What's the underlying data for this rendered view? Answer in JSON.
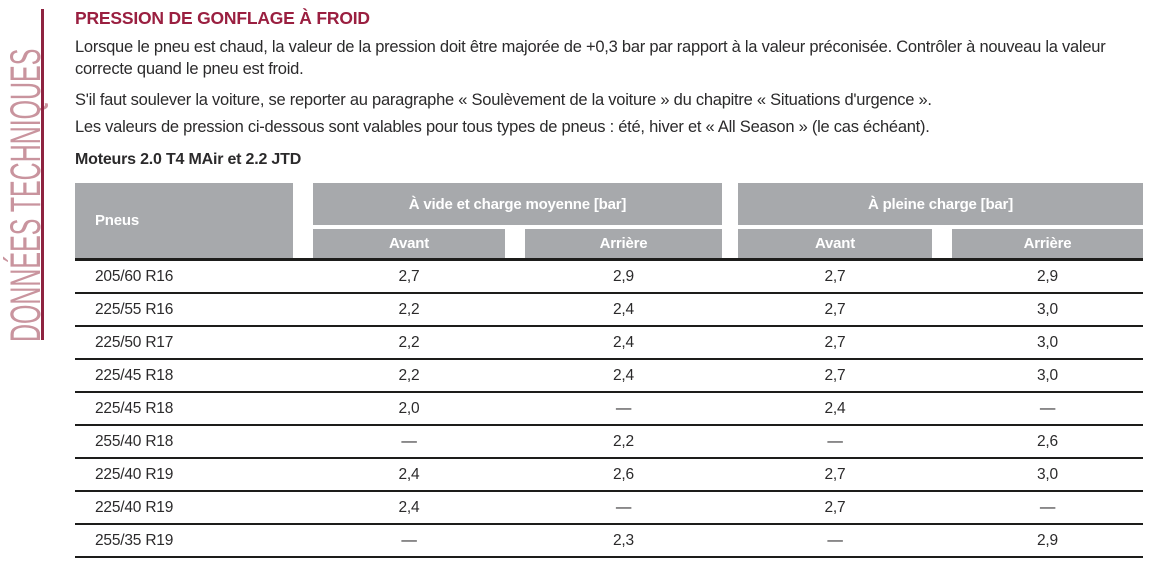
{
  "sidebar": {
    "label": "DONNÉES TECHNIQUES"
  },
  "page": {
    "title": "PRESSION DE GONFLAGE À FROID",
    "paragraph1": "Lorsque le pneu est chaud, la valeur de la pression doit être majorée de +0,3 bar par rapport à la valeur préconisée. Contrôler à nouveau la valeur correcte quand le pneu est froid.",
    "paragraph2": "S'il faut soulever la voiture, se reporter au paragraphe « Soulèvement de la voiture » du chapitre « Situations d'urgence ».",
    "paragraph3": "Les valeurs de pression ci-dessous sont valables pour tous types de pneus : été, hiver et « All Season » (le cas échéant).",
    "subtitle": "Moteurs 2.0 T4 MAir et 2.2 JTD"
  },
  "table": {
    "header": {
      "pneus": "Pneus",
      "group_vide": "À vide et charge moyenne [bar]",
      "group_pleine": "À pleine charge [bar]",
      "avant": "Avant",
      "arriere": "Arrière"
    },
    "rows": [
      {
        "pneus": "205/60 R16",
        "vide_avant": "2,7",
        "vide_arriere": "2,9",
        "pleine_avant": "2,7",
        "pleine_arriere": "2,9"
      },
      {
        "pneus": "225/55 R16",
        "vide_avant": "2,2",
        "vide_arriere": "2,4",
        "pleine_avant": "2,7",
        "pleine_arriere": "3,0"
      },
      {
        "pneus": "225/50 R17",
        "vide_avant": "2,2",
        "vide_arriere": "2,4",
        "pleine_avant": "2,7",
        "pleine_arriere": "3,0"
      },
      {
        "pneus": "225/45 R18",
        "vide_avant": "2,2",
        "vide_arriere": "2,4",
        "pleine_avant": "2,7",
        "pleine_arriere": "3,0"
      },
      {
        "pneus": "225/45 R18",
        "vide_avant": "2,0",
        "vide_arriere": "—",
        "pleine_avant": "2,4",
        "pleine_arriere": "—"
      },
      {
        "pneus": "255/40 R18",
        "vide_avant": "—",
        "vide_arriere": "2,2",
        "pleine_avant": "—",
        "pleine_arriere": "2,6"
      },
      {
        "pneus": "225/40 R19",
        "vide_avant": "2,4",
        "vide_arriere": "2,6",
        "pleine_avant": "2,7",
        "pleine_arriere": "3,0"
      },
      {
        "pneus": "225/40 R19",
        "vide_avant": "2,4",
        "vide_arriere": "—",
        "pleine_avant": "2,7",
        "pleine_arriere": "—"
      },
      {
        "pneus": "255/35 R19",
        "vide_avant": "—",
        "vide_arriere": "2,3",
        "pleine_avant": "—",
        "pleine_arriere": "2,9"
      }
    ]
  },
  "colors": {
    "title_maroon": "#9a1f40",
    "sidebar_text": "#c9949e",
    "sidebar_rule": "#8e2340",
    "header_gray": "#a7a9ac",
    "text_dark": "#2b2a2b",
    "row_line": "#1d1d1b"
  }
}
